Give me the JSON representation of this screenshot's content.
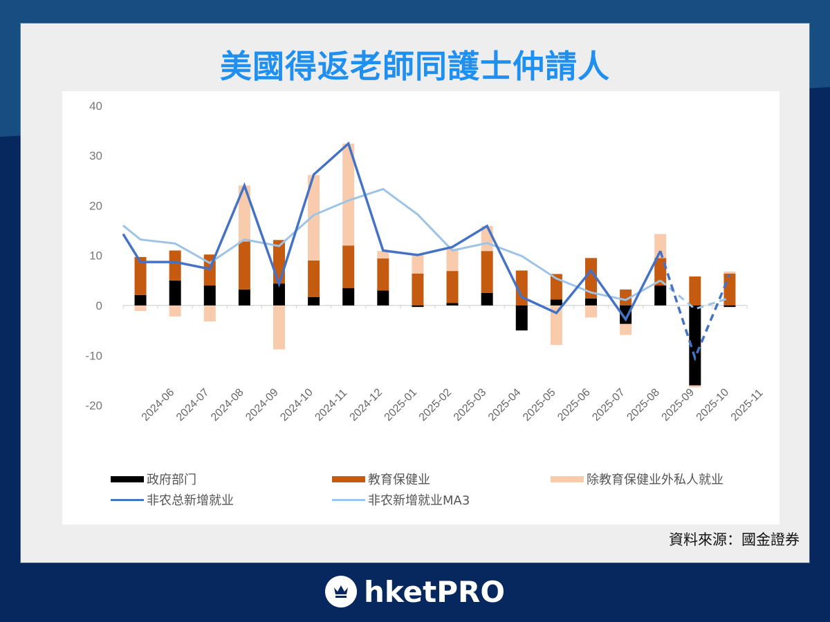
{
  "header": {
    "title": "美國得返老師同護士仲請人"
  },
  "footer": {
    "source": "資料來源：國金證券",
    "brand": "hketPRO",
    "brand_icon": "crown-icon"
  },
  "colors": {
    "government": "#000000",
    "education_health": "#c55a11",
    "other_private": "#f8cbad",
    "total_nfp": "#4472c4",
    "nfp_ma3": "#9dc3e6",
    "title": "#1f8ff0",
    "bg_top": "#184d82",
    "bg_bottom": "#07275f"
  },
  "legend": [
    {
      "key": "government",
      "label": "政府部门",
      "type": "bar"
    },
    {
      "key": "education_health",
      "label": "教育保健业",
      "type": "bar"
    },
    {
      "key": "other_private",
      "label": "除教育保健业外私人就业",
      "type": "bar"
    },
    {
      "key": "total_nfp",
      "label": "非农总新增就业",
      "type": "line"
    },
    {
      "key": "nfp_ma3",
      "label": "非农新增就业MA3",
      "type": "line"
    }
  ],
  "chart_data": {
    "type": "bar",
    "subtype": "stacked bar with line overlay",
    "title": "美國得返老師同護士仲請人",
    "xlabel": "",
    "ylabel": "",
    "ylim": [
      -20,
      40
    ],
    "yticks": [
      40,
      30,
      20,
      10,
      0,
      -10,
      -20
    ],
    "grid": false,
    "legend_position": "bottom",
    "categories": [
      "2024-06",
      "2024-07",
      "2024-08",
      "2024-09",
      "2024-10",
      "2024-11",
      "2024-12",
      "2025-01",
      "2025-02",
      "2025-03",
      "2025-04",
      "2025-05",
      "2025-06",
      "2025-07",
      "2025-08",
      "2025-09",
      "2025-10",
      "2025-11"
    ],
    "series": [
      {
        "name": "政府部门",
        "type": "bar",
        "stack": "s",
        "values": [
          2.1,
          5.0,
          4.0,
          3.2,
          4.4,
          1.7,
          3.5,
          3.0,
          -0.3,
          0.5,
          2.5,
          -5.0,
          1.2,
          1.4,
          -3.7,
          4.0,
          -16.0,
          -0.3
        ]
      },
      {
        "name": "教育保健业",
        "type": "bar",
        "stack": "s",
        "values": [
          7.6,
          6.0,
          6.2,
          9.6,
          8.7,
          7.3,
          8.5,
          6.4,
          6.4,
          6.4,
          8.4,
          7.0,
          5.1,
          8.1,
          3.2,
          5.5,
          5.8,
          6.4
        ]
      },
      {
        "name": "除教育保健业外私人就业",
        "type": "bar",
        "stack": "s",
        "values": [
          -1.1,
          -2.2,
          -3.2,
          11.2,
          -8.8,
          17.1,
          20.4,
          1.5,
          3.8,
          4.5,
          5.0,
          0,
          -7.9,
          -2.4,
          -2.2,
          4.8,
          -0.4,
          0.4
        ]
      },
      {
        "name": "非农总新增就业",
        "type": "line",
        "values": [
          8.7,
          8.7,
          7.3,
          24.0,
          4.3,
          26.2,
          32.4,
          11.0,
          10.1,
          11.7,
          15.9,
          1.7,
          -1.5,
          7.0,
          -2.8,
          10.9,
          -10.5,
          6.2
        ],
        "dashed_from_index": 15,
        "start_value": 14.3
      },
      {
        "name": "非农新增就业MA3",
        "type": "line",
        "values": [
          13.2,
          12.4,
          8.5,
          13.2,
          11.9,
          18.1,
          21.0,
          23.3,
          18.2,
          11.0,
          12.5,
          9.9,
          5.4,
          2.6,
          1.1,
          5.0,
          -0.7,
          1.5
        ],
        "dashed_from_index": 15,
        "start_value": 16.0
      }
    ]
  }
}
